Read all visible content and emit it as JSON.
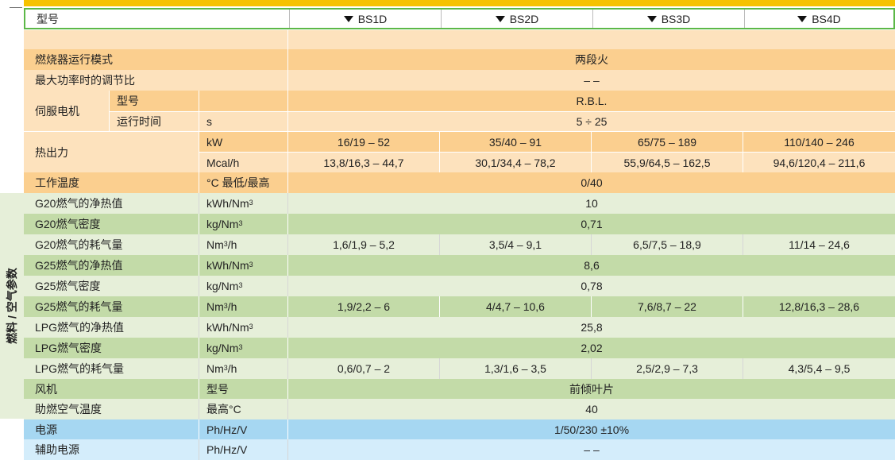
{
  "table": {
    "header": {
      "label": "型号",
      "models": [
        "BS1D",
        "BS2D",
        "BS3D",
        "BS4D"
      ]
    },
    "side_label": "燃料 / 空气参数",
    "burner_mode": {
      "label": "燃烧器运行模式",
      "value": "两段火"
    },
    "turndown": {
      "label": "最大功率时的调节比",
      "value": "– –"
    },
    "servo": {
      "label": "伺服电机",
      "model_label": "型号",
      "model_value": "R.B.L.",
      "time_label": "运行时间",
      "time_unit": "s",
      "time_value": "5 ÷ 25"
    },
    "heat_output": {
      "label": "热出力",
      "kw_unit": "kW",
      "kw_values": [
        "16/19 – 52",
        "35/40 – 91",
        "65/75 – 189",
        "110/140 – 246"
      ],
      "mcal_unit": "Mcal/h",
      "mcal_values": [
        "13,8/16,3 – 44,7",
        "30,1/34,4 – 78,2",
        "55,9/64,5 – 162,5",
        "94,6/120,4 – 211,6"
      ]
    },
    "work_temp": {
      "label": "工作温度",
      "unit": "°C 最低/最高",
      "value": "0/40"
    },
    "g20_hv": {
      "label": "G20燃气的净热值",
      "unit_main": "kWh/Nm",
      "unit_sup": "3",
      "value": "10"
    },
    "g20_density": {
      "label": "G20燃气密度",
      "unit_main": "kg/Nm",
      "unit_sup": "3",
      "value": "0,71"
    },
    "g20_flow": {
      "label": "G20燃气的耗气量",
      "unit_a": "Nm",
      "unit_sup": "3",
      "unit_b": "/h",
      "values": [
        "1,6/1,9 – 5,2",
        "3,5/4 – 9,1",
        "6,5/7,5 – 18,9",
        "11/14 – 24,6"
      ]
    },
    "g25_hv": {
      "label": "G25燃气的净热值",
      "unit_main": "kWh/Nm",
      "unit_sup": "3",
      "value": "8,6"
    },
    "g25_density": {
      "label": "G25燃气密度",
      "unit_main": "kg/Nm",
      "unit_sup": "3",
      "value": "0,78"
    },
    "g25_flow": {
      "label": "G25燃气的耗气量",
      "unit_a": "Nm",
      "unit_sup": "3",
      "unit_b": "/h",
      "values": [
        "1,9/2,2 – 6",
        "4/4,7 – 10,6",
        "7,6/8,7 – 22",
        "12,8/16,3 – 28,6"
      ]
    },
    "lpg_hv": {
      "label": "LPG燃气的净热值",
      "unit_main": "kWh/Nm",
      "unit_sup": "3",
      "value": "25,8"
    },
    "lpg_density": {
      "label": "LPG燃气密度",
      "unit_main": "kg/Nm",
      "unit_sup": "3",
      "value": "2,02"
    },
    "lpg_flow": {
      "label": "LPG燃气的耗气量",
      "unit_a": "Nm",
      "unit_sup": "3",
      "unit_b": "/h",
      "values": [
        "0,6/0,7 – 2",
        "1,3/1,6 – 3,5",
        "2,5/2,9 – 7,3",
        "4,3/5,4 – 9,5"
      ]
    },
    "fan": {
      "label": "风机",
      "unit": "型号",
      "value": "前倾叶片"
    },
    "air_temp": {
      "label": "助燃空气温度",
      "unit": "最高°C",
      "value": "40"
    },
    "power": {
      "label": "电源",
      "unit": "Ph/Hz/V",
      "value": "1/50/230 ±10%"
    },
    "aux_power": {
      "label": "辅助电源",
      "unit": "Ph/Hz/V",
      "value": "– –"
    }
  }
}
